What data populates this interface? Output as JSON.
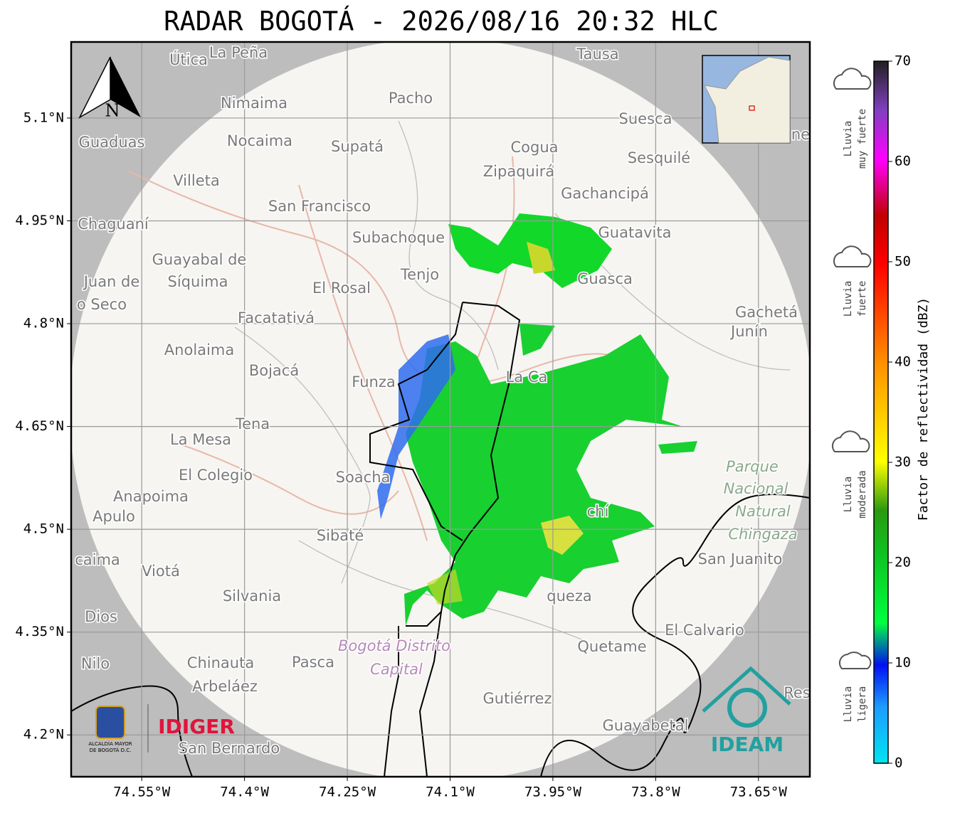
{
  "map": {
    "title": "RADAR BOGOTÁ - 2026/08/16 20:32 HLC",
    "lonlim": [
      -74.653,
      -73.575
    ],
    "latlim": [
      4.139,
      5.211
    ],
    "lonticks": [
      {
        "value": -74.55,
        "label": "74.55°W"
      },
      {
        "value": -74.4,
        "label": "74.4°W"
      },
      {
        "value": -74.25,
        "label": "74.25°W"
      },
      {
        "value": -74.1,
        "label": "74.1°W"
      },
      {
        "value": -73.95,
        "label": "73.95°W"
      },
      {
        "value": -73.8,
        "label": "73.8°W"
      },
      {
        "value": -73.65,
        "label": "73.65°W"
      }
    ],
    "latticks": [
      {
        "value": 5.1,
        "label": "5.1°N"
      },
      {
        "value": 4.95,
        "label": "4.95°N"
      },
      {
        "value": 4.8,
        "label": "4.8°N"
      },
      {
        "value": 4.65,
        "label": "4.65°N"
      },
      {
        "value": 4.5,
        "label": "4.5°N"
      },
      {
        "value": 4.35,
        "label": "4.35°N"
      },
      {
        "value": 4.2,
        "label": "4.2°N"
      }
    ],
    "grid": true,
    "north": "N",
    "places": [
      "Útica",
      "La Peña",
      "Tausa",
      "Pacho",
      "Nimaima",
      "Guaduas",
      "Nocaima",
      "Supatá",
      "Cogua",
      "Suesca",
      "Sesquilé",
      "Zipaquirá",
      "Villeta",
      "Gachancipá",
      "San Francisco",
      "Chaguaní",
      "Subachoque",
      "Guatavita",
      "Guayabal de",
      "Síquima",
      "Tenjo",
      "Guasca",
      "Juan de",
      "o Seco",
      "El Rosal",
      "Facatativá",
      "Gachetá",
      "Junín",
      "Anolaima",
      "Bojacá",
      "Funza",
      "La Ca",
      "Tena",
      "La Mesa",
      "El Colegio",
      "Soacha",
      "Anapoima",
      "Apulo",
      "Sibaté",
      "San Juanito",
      "caima",
      "Viotá",
      "Silvania",
      "queza",
      "Dios",
      "El Calvario",
      "Quetame",
      "Nilo",
      "Chinauta",
      "Pasca",
      "Arbeláez",
      "Gutiérrez",
      "Guayabetal",
      "San Bernardo",
      "ne",
      "Res",
      "chí"
    ],
    "parks": [
      "Parque",
      "Nacional",
      "Natural",
      "Chingaza"
    ],
    "district": [
      "Bogotá Distrito",
      "Capital"
    ],
    "logos": {
      "alcaldia": "ALCALDÍA MAYOR",
      "alcaldia2": "DE BOGOTÁ D.C.",
      "idiger": "IDIGER",
      "ideam": "IDEAM"
    }
  },
  "colorbar": {
    "label": "Factor de reflectividad (dBZ)",
    "lim": [
      0,
      70
    ],
    "ticks": [
      0,
      10,
      20,
      30,
      40,
      50,
      60,
      70
    ],
    "categories": [
      [
        "Lluvia",
        "muy fuerte"
      ],
      [
        "Lluvia",
        "fuerte"
      ],
      [
        "Lluvia",
        "moderada"
      ],
      [
        "Lluvia",
        "ligera"
      ]
    ]
  }
}
